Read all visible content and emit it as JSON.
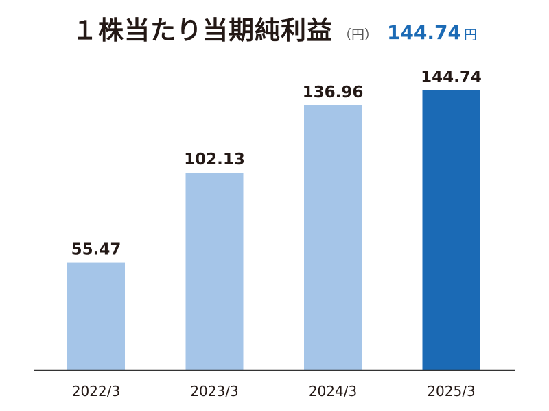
{
  "header": {
    "title": "１株当たり当期純利益",
    "unit": "（円）",
    "headline_value": "144.74",
    "headline_unit": "円"
  },
  "colors": {
    "title": "#231815",
    "bar_past": "#a5c5e8",
    "bar_latest": "#1b6ab5",
    "axis": "#333333",
    "label": "#231815"
  },
  "chart_data": {
    "type": "bar",
    "title": "１株当たり当期純利益",
    "ylabel": "",
    "xlabel": "",
    "categories": [
      "2022/3",
      "2023/3",
      "2024/3",
      "2025/3"
    ],
    "values": [
      55.47,
      102.13,
      136.96,
      144.74
    ],
    "value_labels": [
      "55.47",
      "102.13",
      "136.96",
      "144.74"
    ],
    "highlight_index": 3,
    "ylim": [
      0,
      160
    ],
    "grid": false,
    "legend": "none"
  }
}
